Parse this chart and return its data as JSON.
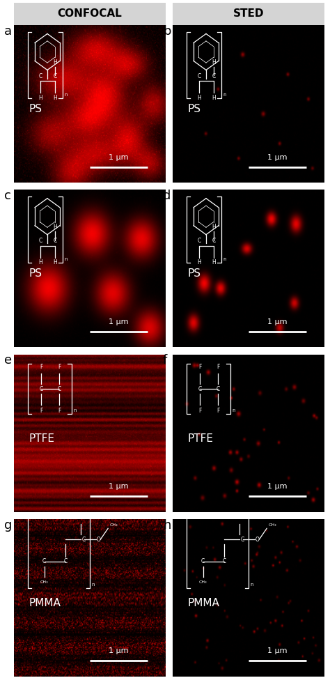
{
  "title_left": "CONFOCAL",
  "title_right": "STED",
  "panel_labels": [
    "a",
    "b",
    "c",
    "d",
    "e",
    "f",
    "g",
    "h"
  ],
  "polymer_labels": [
    "PS",
    "PS",
    "PS",
    "PS",
    "PTFE",
    "PTFE",
    "PMMA",
    "PMMA"
  ],
  "scale_bar_text": "1 μm",
  "header_bg": "#d4d4d4",
  "header_fontsize": 11,
  "label_fontsize": 13,
  "polymer_fontsize": 11,
  "scale_fontsize": 8,
  "fig_w": 4.74,
  "fig_h": 9.73,
  "dpi": 100
}
